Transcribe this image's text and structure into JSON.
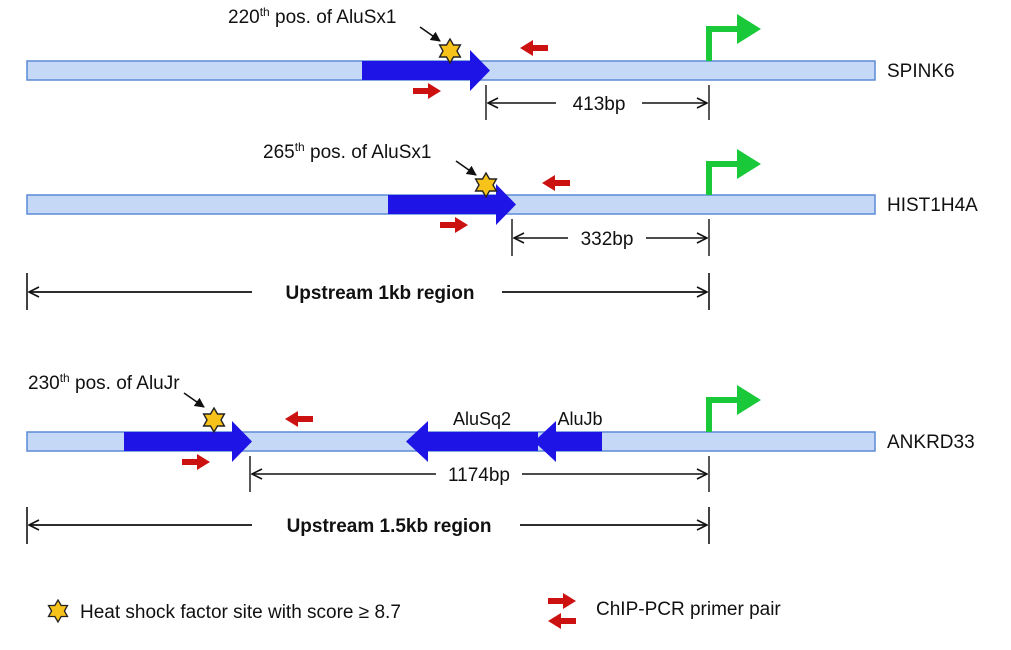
{
  "colors": {
    "gene_bar_fill": "#c5d9f7",
    "gene_bar_stroke": "#5b8ad6",
    "alu_arrow": "#1f14e6",
    "tss_arrow": "#19c93a",
    "primer": "#cc1111",
    "star_fill": "#f7c21a",
    "star_stroke": "#222222"
  },
  "genes": [
    {
      "name": "SPINK6",
      "hsf_num": "220",
      "hsf_sup": "th",
      "hsf_rest": " pos. of AluSx1",
      "distance": "413bp"
    },
    {
      "name": "HIST1H4A",
      "hsf_num": "265",
      "hsf_sup": "th",
      "hsf_rest": " pos. of AluSx1",
      "distance": "332bp"
    },
    {
      "name": "ANKRD33",
      "hsf_num": "230",
      "hsf_sup": "th",
      "hsf_rest": " pos. of AluJr",
      "distance": "1174bp",
      "extra_alu": [
        "AluSq2",
        "AluJb"
      ]
    }
  ],
  "regions": [
    "Upstream 1kb region",
    "Upstream 1.5kb region"
  ],
  "legend": {
    "hsf": "Heat shock factor site with score ≥ 8.7",
    "primer": "ChIP-PCR primer pair"
  },
  "icons": [
    "star-icon",
    "tss-arrow-icon",
    "primer-arrow-icon"
  ]
}
